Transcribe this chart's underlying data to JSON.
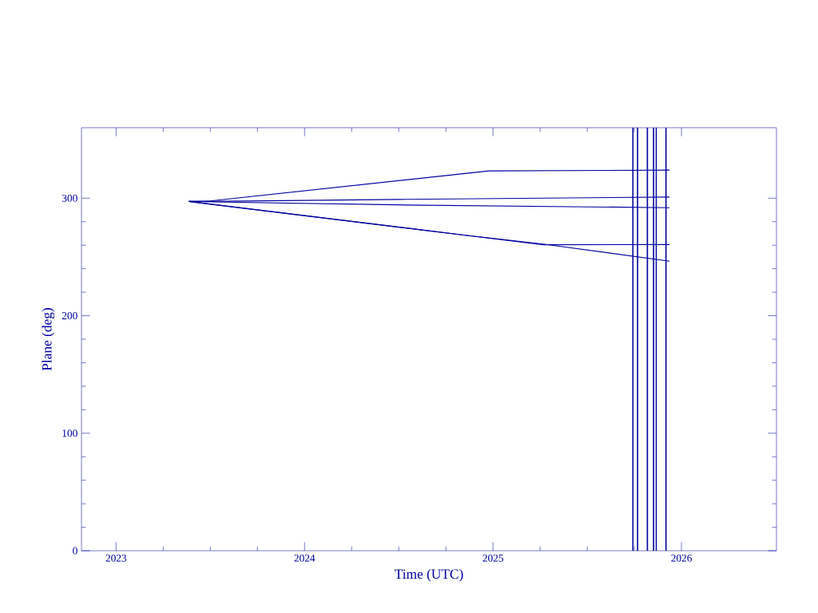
{
  "chart_data": {
    "type": "line",
    "xlabel": "Time (UTC)",
    "ylabel": "Plane (deg)",
    "xlim": [
      "2022-10-26",
      "2026-07-04"
    ],
    "xticks": [
      "2023",
      "2024",
      "2025",
      "2026"
    ],
    "ylim": [
      0,
      360
    ],
    "yticks": [
      0,
      100,
      200,
      300
    ],
    "series": [
      {
        "color": "#0000a0",
        "x": [
          "2023-05-22",
          "2023-06-29",
          "2024-12-24",
          "2025-12-09"
        ],
        "values": [
          297.2,
          297.5,
          323.2,
          323.9
        ]
      },
      {
        "color": "#0000a0",
        "x": [
          "2023-05-22",
          "2024-07-01",
          "2025-12-09"
        ],
        "values": [
          297.2,
          299.0,
          301.0
        ]
      },
      {
        "color": "#0000a0",
        "x": [
          "2023-05-22",
          "2024-07-01",
          "2025-12-09"
        ],
        "values": [
          297.2,
          294.3,
          291.9
        ]
      },
      {
        "color": "#0000a0",
        "x": [
          "2023-05-22",
          "2024-11-02",
          "2025-04-08",
          "2025-12-09"
        ],
        "values": [
          297.2,
          268.8,
          260.4,
          260.6
        ]
      },
      {
        "color": "#0000a0",
        "x": [
          "2023-05-22",
          "2024-11-02",
          "2025-04-08",
          "2025-12-09"
        ],
        "values": [
          297.2,
          268.8,
          261.0,
          246.4
        ]
      }
    ],
    "ref_lines": [
      {
        "axis": "x",
        "value": "2025-09-29",
        "color": "#0000a0"
      },
      {
        "axis": "x",
        "value": "2025-10-08",
        "color": "#0000a0"
      },
      {
        "axis": "x",
        "value": "2025-10-27",
        "color": "#0000a0"
      },
      {
        "axis": "x",
        "value": "2025-11-08",
        "color": "#0000a0"
      },
      {
        "axis": "x",
        "value": "2025-11-13",
        "color": "#0000a0"
      },
      {
        "axis": "x",
        "value": "2025-12-02",
        "color": "#0000a0"
      }
    ],
    "marker": "none",
    "line_style": "solid"
  }
}
